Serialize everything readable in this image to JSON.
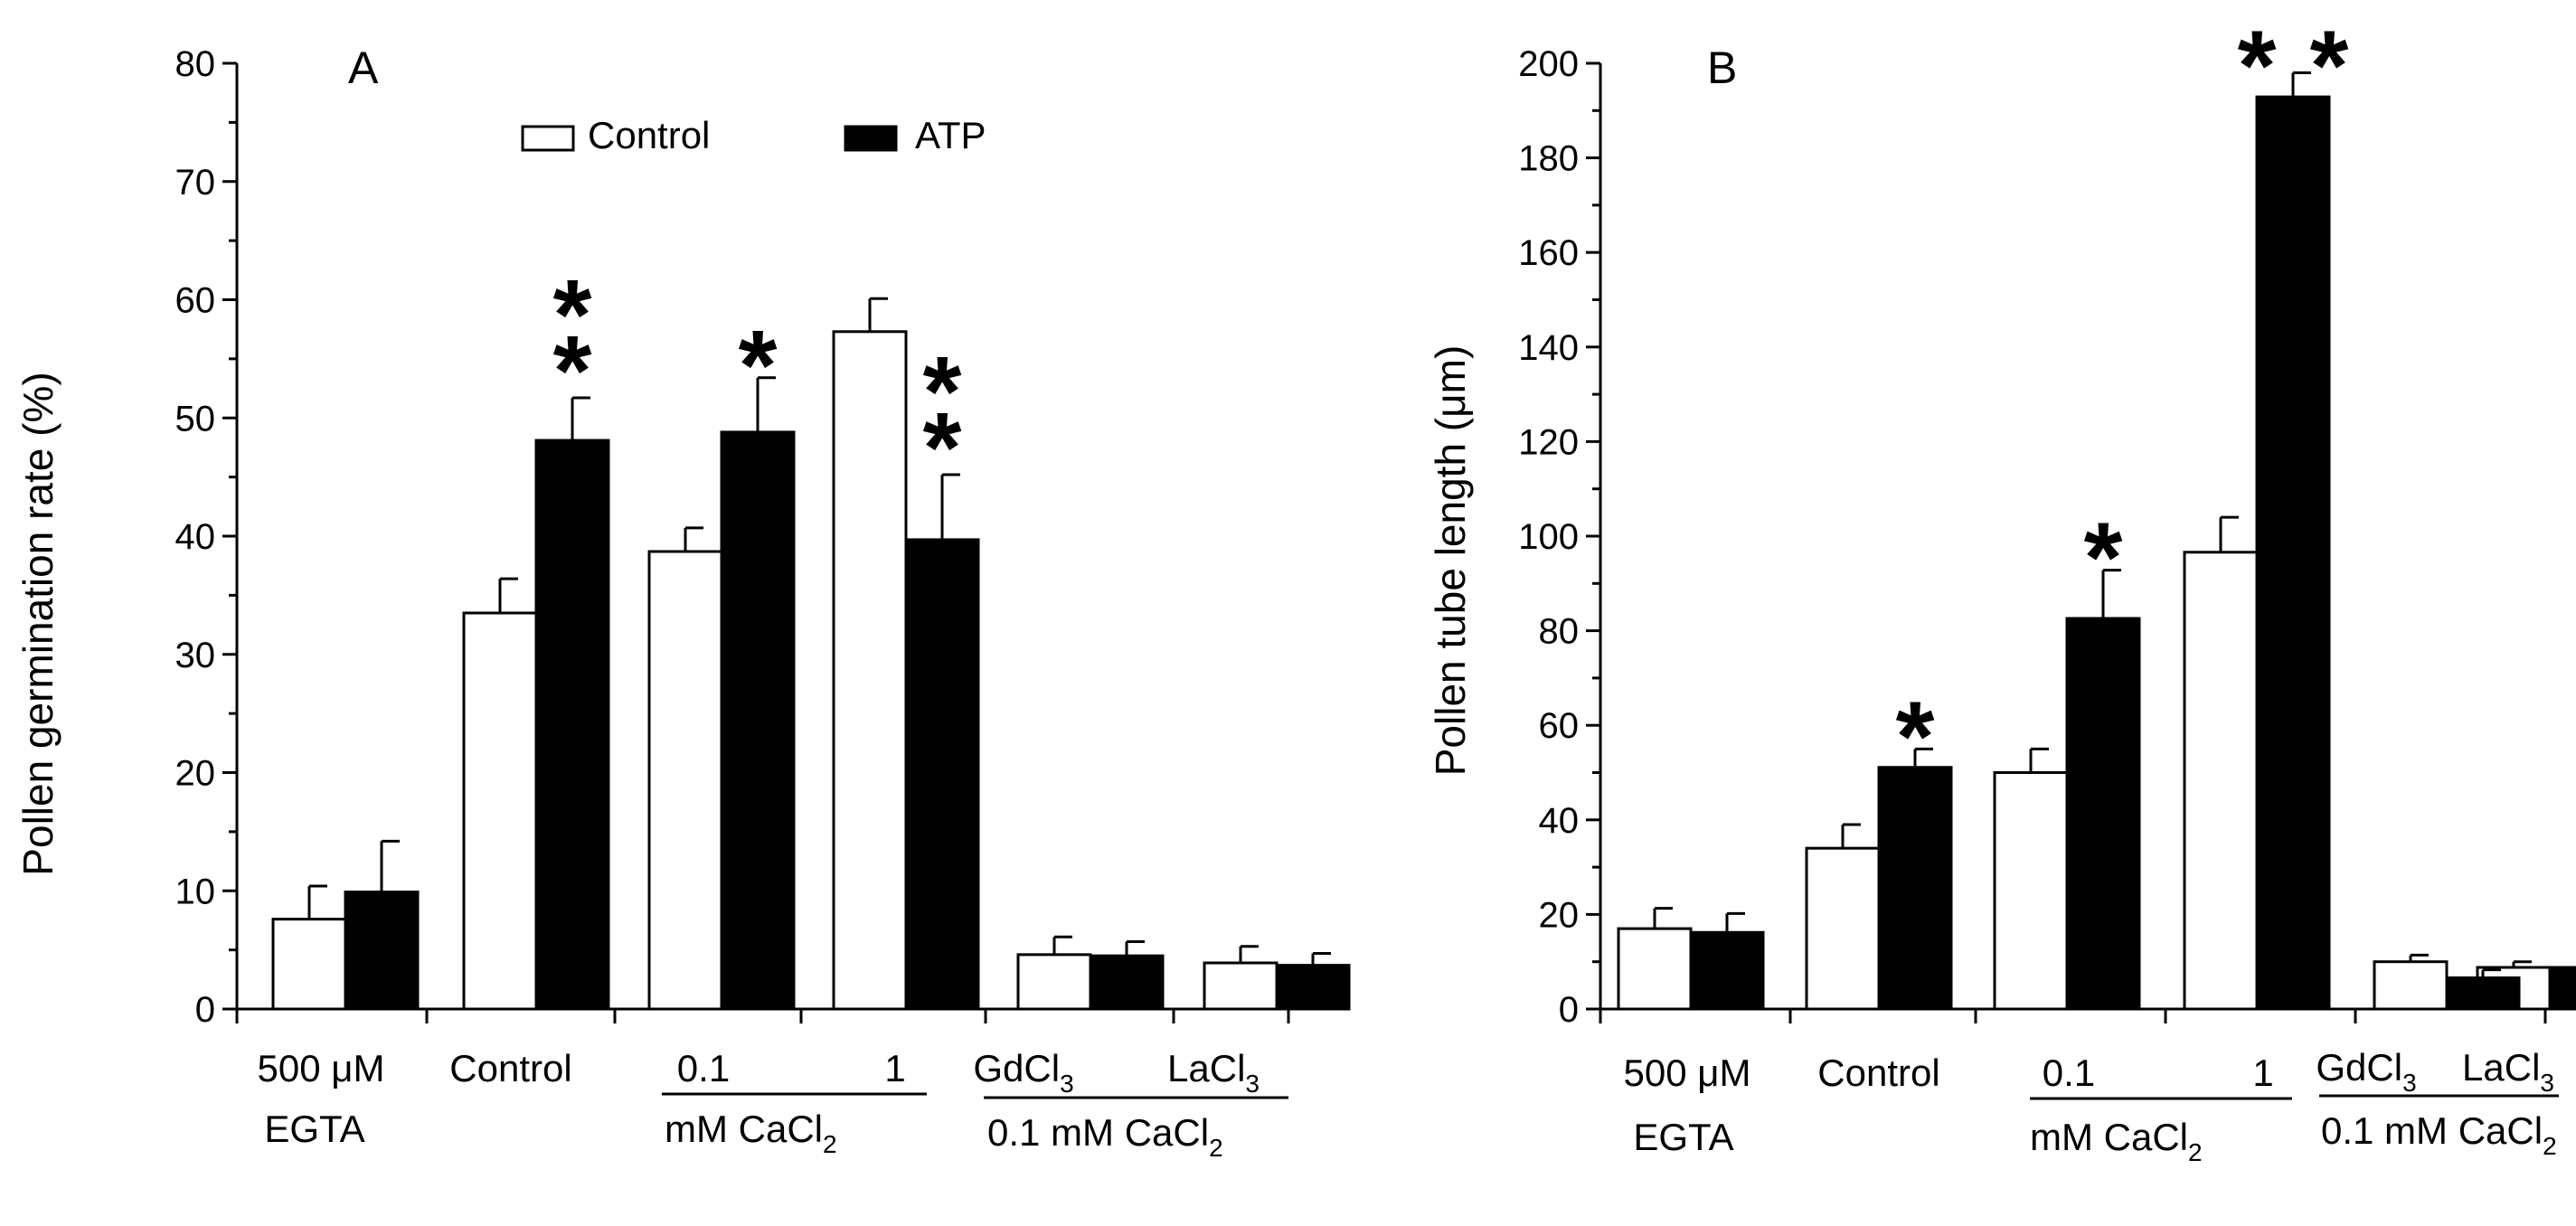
{
  "legend": {
    "control_label": "Control",
    "atp_label": "ATP"
  },
  "chart_data": [
    {
      "type": "bar",
      "panel": "A",
      "ylabel": "Pollen germination rate (%)",
      "ylim": [
        0,
        80
      ],
      "yticks": [
        0,
        10,
        20,
        30,
        40,
        50,
        60,
        70,
        80
      ],
      "legend_position": "top-center",
      "categories": [
        "500 μM EGTA",
        "Control",
        "0.1 mM CaCl2",
        "1 mM CaCl2",
        "GdCl3 + 0.1 mM CaCl2",
        "LaCl3 + 0.1 mM CaCl2"
      ],
      "series": [
        {
          "name": "Control",
          "values": [
            7.6,
            33.5,
            38.7,
            57.3,
            4.6,
            3.9
          ],
          "errors": [
            2.8,
            2.9,
            2.0,
            2.8,
            1.5,
            1.4
          ]
        },
        {
          "name": "ATP",
          "values": [
            9.9,
            48.1,
            48.8,
            39.7,
            4.5,
            3.7
          ],
          "errors": [
            4.3,
            3.6,
            4.6,
            5.5,
            1.2,
            1.0
          ]
        }
      ],
      "significance": [
        {
          "category": 1,
          "series": "ATP",
          "mark": "**"
        },
        {
          "category": 2,
          "series": "ATP",
          "mark": "*"
        },
        {
          "category": 3,
          "series": "ATP",
          "mark": "**"
        }
      ],
      "xlabels": {
        "g1": "500 μM",
        "g1b": "EGTA",
        "g2": "Control",
        "g3": "0.1",
        "g4": "1",
        "g34_base": "mM CaCl",
        "g34_sub": "2",
        "g5_base": "GdCl",
        "g5_sub": "3",
        "g6_base": "LaCl",
        "g6_sub": "3",
        "g56_base": "0.1 mM CaCl",
        "g56_sub": "2"
      }
    },
    {
      "type": "bar",
      "panel": "B",
      "ylabel": "Pollen tube length (μm)",
      "ylim": [
        0,
        200
      ],
      "yticks": [
        0,
        20,
        40,
        60,
        80,
        100,
        120,
        140,
        160,
        180,
        200
      ],
      "categories": [
        "500 μM EGTA",
        "Control",
        "0.1 mM CaCl2",
        "1 mM CaCl2",
        "GdCl3 + 0.1 mM CaCl2",
        "LaCl3 + 0.1 mM CaCl2"
      ],
      "series": [
        {
          "name": "Control",
          "values": [
            17.0,
            34.0,
            50.0,
            96.6,
            10.0,
            8.8
          ],
          "errors": [
            4.3,
            5.0,
            5.0,
            7.4,
            1.4,
            1.2
          ]
        },
        {
          "name": "ATP",
          "values": [
            16.2,
            51.1,
            82.6,
            192.9,
            6.6,
            8.8
          ],
          "errors": [
            4.0,
            3.9,
            10.2,
            5.1,
            1.7,
            0.9
          ]
        }
      ],
      "significance": [
        {
          "category": 1,
          "series": "ATP",
          "mark": "*"
        },
        {
          "category": 2,
          "series": "ATP",
          "mark": "*"
        },
        {
          "category": 3,
          "series": "ATP",
          "mark": "**"
        }
      ],
      "xlabels": {
        "g1": "500 μM",
        "g1b": "EGTA",
        "g2": "Control",
        "g3": "0.1",
        "g4": "1",
        "g34_base": "mM CaCl",
        "g34_sub": "2",
        "g5_base": "GdCl",
        "g5_sub": "3",
        "g6_base": "LaCl",
        "g6_sub": "3",
        "g56_base": "0.1 mM CaCl",
        "g56_sub": "2"
      }
    }
  ]
}
